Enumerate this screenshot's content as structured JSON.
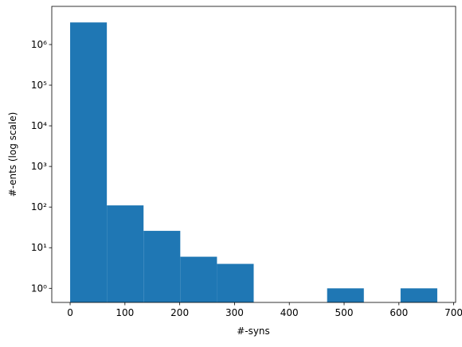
{
  "chart_data": {
    "type": "histogram",
    "xlabel": "#-syns",
    "ylabel": "#-ents (log scale)",
    "bins": [
      0,
      67,
      134,
      201,
      268,
      335,
      402,
      469,
      536,
      603,
      670
    ],
    "values": [
      3500000,
      110,
      26,
      6,
      4,
      0,
      0,
      1,
      0,
      1
    ],
    "color": "#1f77b4",
    "xlim": [
      -33.5,
      703.5
    ],
    "xticks": [
      0,
      100,
      200,
      300,
      400,
      500,
      600,
      700
    ],
    "ylim": [
      0.45,
      8700000
    ],
    "yscale": "log",
    "yticks": [
      {
        "value": 1,
        "label": "10⁰"
      },
      {
        "value": 10,
        "label": "10¹"
      },
      {
        "value": 100,
        "label": "10²"
      },
      {
        "value": 1000,
        "label": "10³"
      },
      {
        "value": 10000,
        "label": "10⁴"
      },
      {
        "value": 100000,
        "label": "10⁵"
      },
      {
        "value": 1000000,
        "label": "10⁶"
      }
    ]
  }
}
